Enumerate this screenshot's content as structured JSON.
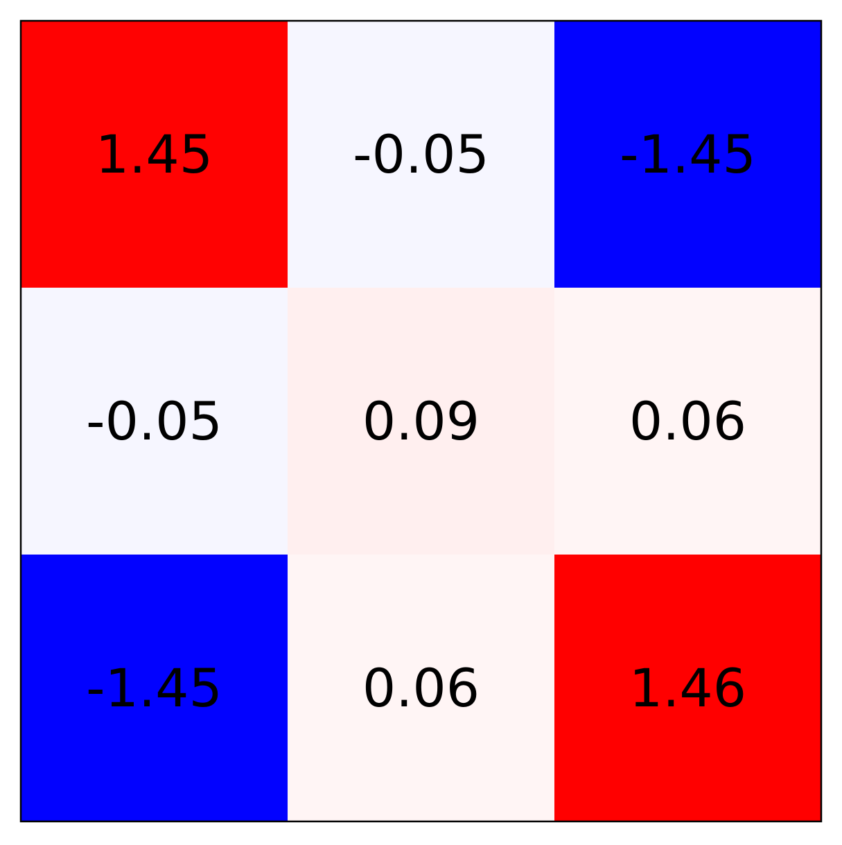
{
  "chart_data": {
    "type": "heatmap",
    "title": "",
    "xlabel": "",
    "ylabel": "",
    "rows": 3,
    "cols": 3,
    "values": [
      [
        1.45,
        -0.05,
        -1.45
      ],
      [
        -0.05,
        0.09,
        0.06
      ],
      [
        -1.45,
        0.06,
        1.46
      ]
    ],
    "labels": [
      [
        "1.45",
        "-0.05",
        "-1.45"
      ],
      [
        "-0.05",
        "0.09",
        "0.06"
      ],
      [
        "-1.45",
        "0.06",
        "1.46"
      ]
    ],
    "colormap": "bwr",
    "vmin": -1.46,
    "vmax": 1.46,
    "colors": {
      "negative": "#0000ff",
      "neutral": "#ffffff",
      "positive": "#ff0000",
      "text": "#000000",
      "frame": "#000000"
    },
    "grid": false,
    "legend": "none"
  }
}
